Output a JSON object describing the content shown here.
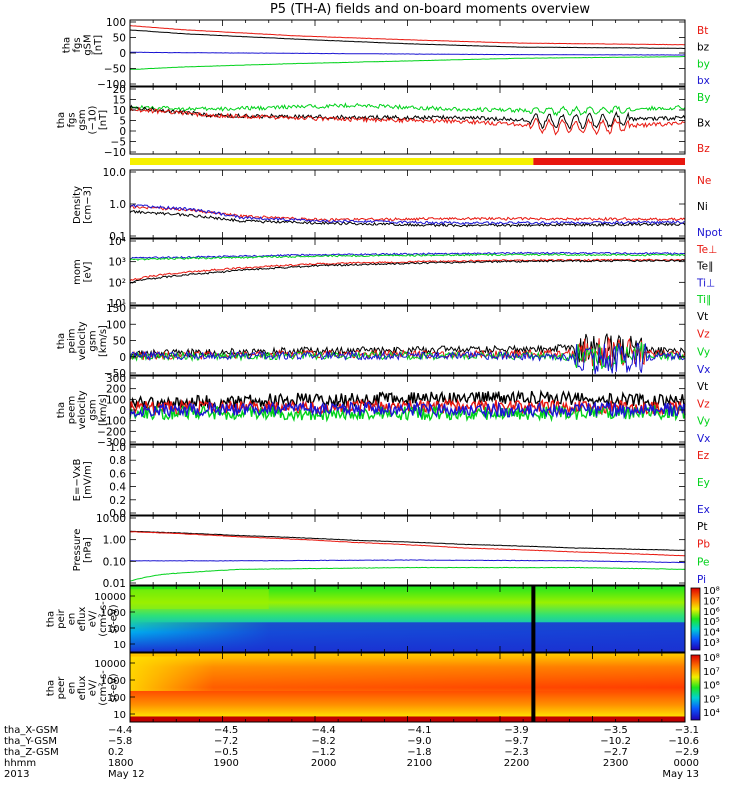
{
  "title": "P5 (TH-A) fields and on-board moments overview",
  "colors": {
    "black": "#000000",
    "red": "#e8170f",
    "green": "#00d21a",
    "blue": "#1a14d2",
    "yellow": "#f6f000"
  },
  "chart_data": [
    {
      "id": "fgs_gsm",
      "type": "line",
      "ylabel": [
        "tha",
        "fgs",
        "gSM",
        "[nT]"
      ],
      "yticks": [
        "100",
        "50",
        "0",
        "−50",
        "−100"
      ],
      "ylim": [
        -100,
        100
      ],
      "series": [
        {
          "name": "Bt",
          "color": "red",
          "values_x": [
            0,
            0.1,
            0.3,
            0.5,
            0.7,
            1.0
          ],
          "values": [
            83,
            70,
            52,
            40,
            30,
            25
          ]
        },
        {
          "name": "bz",
          "color": "black",
          "values_x": [
            0,
            0.1,
            0.3,
            0.5,
            0.7,
            1.0
          ],
          "values": [
            70,
            58,
            42,
            28,
            18,
            14
          ]
        },
        {
          "name": "by",
          "color": "green",
          "values_x": [
            0,
            0.1,
            0.3,
            0.5,
            0.7,
            1.0
          ],
          "values": [
            -50,
            -42,
            -32,
            -24,
            -16,
            -11
          ]
        },
        {
          "name": "bx",
          "color": "blue",
          "values_x": [
            0,
            0.1,
            0.3,
            0.5,
            0.7,
            1.0
          ],
          "values": [
            2,
            1,
            -1,
            -3,
            -5,
            -6
          ]
        }
      ]
    },
    {
      "id": "fgs_gsm_detail",
      "type": "line",
      "ylabel": [
        "tha",
        "fgs",
        "gsm",
        "(−10)",
        "[nT]"
      ],
      "yticks": [
        "20",
        "15",
        "10",
        "5",
        "0",
        "−5",
        "−10"
      ],
      "ylim": [
        -13,
        20
      ],
      "series": [
        {
          "name": "By",
          "color": "green",
          "values_x": [
            0,
            0.15,
            0.4,
            0.6,
            0.8,
            1.0
          ],
          "values": [
            10,
            9,
            11,
            9,
            8,
            10
          ]
        },
        {
          "name": "Bx",
          "color": "black",
          "values_x": [
            0,
            0.15,
            0.4,
            0.6,
            0.8,
            1.0
          ],
          "values": [
            10,
            6,
            5,
            5,
            3,
            5
          ]
        },
        {
          "name": "Bz",
          "color": "red",
          "values_x": [
            0,
            0.15,
            0.4,
            0.6,
            0.8,
            1.0
          ],
          "values": [
            9,
            6,
            4,
            3,
            0,
            2
          ]
        }
      ]
    },
    {
      "id": "density",
      "type": "line",
      "ylabel": [
        "Density",
        "[cm−3]"
      ],
      "scale": "log",
      "yticks": [
        "10.0",
        "1.0",
        "0.1"
      ],
      "ylim": [
        0.1,
        15
      ],
      "series": [
        {
          "name": "Ne",
          "color": "red",
          "values_x": [
            0,
            0.1,
            0.2,
            0.35,
            0.6,
            1.0
          ],
          "values": [
            1.0,
            0.8,
            0.5,
            0.38,
            0.42,
            0.4
          ]
        },
        {
          "name": "Ni",
          "color": "black",
          "values_x": [
            0,
            0.1,
            0.2,
            0.35,
            0.6,
            1.0
          ],
          "values": [
            0.7,
            0.55,
            0.35,
            0.3,
            0.25,
            0.28
          ]
        },
        {
          "name": "Npot",
          "color": "blue",
          "values_x": [
            0,
            0.1,
            0.2,
            0.35,
            0.6,
            1.0
          ],
          "values": [
            1.1,
            0.85,
            0.45,
            0.35,
            0.3,
            0.32
          ]
        }
      ]
    },
    {
      "id": "temperature",
      "type": "line",
      "ylabel": [
        "mom",
        "[eV]"
      ],
      "scale": "log",
      "yticks": [
        "10⁴",
        "10³",
        "10²",
        "10¹"
      ],
      "ylim": [
        10,
        30000
      ],
      "series": [
        {
          "name": "Te⊥",
          "color": "red",
          "values_x": [
            0,
            0.15,
            0.35,
            0.55,
            0.7,
            1.0
          ],
          "values": [
            200,
            700,
            1500,
            2000,
            2300,
            2400
          ]
        },
        {
          "name": "Te∥",
          "color": "black",
          "values_x": [
            0,
            0.15,
            0.35,
            0.55,
            0.7,
            1.0
          ],
          "values": [
            150,
            500,
            1200,
            1700,
            2000,
            2200
          ]
        },
        {
          "name": "Ti⊥",
          "color": "blue",
          "values_x": [
            0,
            0.15,
            0.35,
            0.55,
            0.7,
            1.0
          ],
          "values": [
            3000,
            3500,
            4500,
            5000,
            5500,
            5200
          ]
        },
        {
          "name": "Ti∥",
          "color": "green",
          "values_x": [
            0,
            0.15,
            0.35,
            0.55,
            0.7,
            1.0
          ],
          "values": [
            2500,
            3000,
            3800,
            4200,
            4500,
            4300
          ]
        }
      ]
    },
    {
      "id": "peim_velocity",
      "type": "line",
      "ylabel": [
        "tha",
        "peim",
        "velocity",
        "gsm",
        "[km/s]"
      ],
      "yticks": [
        "150",
        "100",
        "50",
        "0",
        "−50"
      ],
      "ylim": [
        -60,
        155
      ],
      "series": [
        {
          "name": "Vt",
          "color": "black",
          "values_x": [
            0,
            0.3,
            0.7,
            0.85,
            1.0
          ],
          "values": [
            5,
            15,
            20,
            25,
            12
          ]
        },
        {
          "name": "Vz",
          "color": "red",
          "values_x": [
            0,
            0.3,
            0.7,
            0.85,
            1.0
          ],
          "values": [
            0,
            5,
            5,
            10,
            3
          ]
        },
        {
          "name": "Vy",
          "color": "green",
          "values_x": [
            0,
            0.3,
            0.7,
            0.85,
            1.0
          ],
          "values": [
            -3,
            0,
            0,
            -5,
            0
          ]
        },
        {
          "name": "Vx",
          "color": "blue",
          "values_x": [
            0,
            0.3,
            0.7,
            0.85,
            1.0
          ],
          "values": [
            0,
            0,
            0,
            -10,
            0
          ]
        }
      ]
    },
    {
      "id": "peem_velocity",
      "type": "line",
      "ylabel": [
        "tha",
        "peem",
        "velocity",
        "gsm",
        "[km/s]"
      ],
      "yticks": [
        "300",
        "200",
        "100",
        "0",
        "−100",
        "−200",
        "−300"
      ],
      "ylim": [
        -300,
        300
      ],
      "series": [
        {
          "name": "Vt",
          "color": "black",
          "values_x": [
            0,
            0.3,
            0.7,
            1.0
          ],
          "values": [
            60,
            90,
            110,
            80
          ]
        },
        {
          "name": "Vz",
          "color": "red",
          "values_x": [
            0,
            0.3,
            0.7,
            1.0
          ],
          "values": [
            20,
            25,
            30,
            20
          ]
        },
        {
          "name": "Vy",
          "color": "green",
          "values_x": [
            0,
            0.3,
            0.7,
            1.0
          ],
          "values": [
            -20,
            -30,
            -30,
            -20
          ]
        },
        {
          "name": "Vx",
          "color": "blue",
          "values_x": [
            0,
            0.3,
            0.7,
            1.0
          ],
          "values": [
            0,
            10,
            0,
            5
          ]
        }
      ]
    },
    {
      "id": "efield",
      "type": "line",
      "ylabel": [
        "E=−VxB",
        "[mV/m]"
      ],
      "yticks": [
        "1.0",
        "0.8",
        "0.6",
        "0.4",
        "0.2",
        "0.0"
      ],
      "ylim": [
        0,
        1
      ],
      "series": [
        {
          "name": "Ez",
          "color": "red"
        },
        {
          "name": "Ey",
          "color": "green"
        },
        {
          "name": "Ex",
          "color": "blue"
        }
      ]
    },
    {
      "id": "pressure",
      "type": "line",
      "ylabel": [
        "Pressure",
        "[nPa]"
      ],
      "scale": "log",
      "yticks": [
        "10.00",
        "1.00",
        "0.10",
        "0.01"
      ],
      "ylim": [
        0.01,
        12
      ],
      "series": [
        {
          "name": "Pt",
          "color": "black",
          "values_x": [
            0,
            0.2,
            0.4,
            0.6,
            0.8,
            1.0
          ],
          "values": [
            2.5,
            1.6,
            1.0,
            0.65,
            0.45,
            0.35
          ]
        },
        {
          "name": "Pb",
          "color": "red",
          "values_x": [
            0,
            0.2,
            0.4,
            0.6,
            0.8,
            1.0
          ],
          "values": [
            2.4,
            1.4,
            0.8,
            0.45,
            0.3,
            0.2
          ]
        },
        {
          "name": "Pe",
          "color": "green",
          "values_x": [
            0,
            0.06,
            0.2,
            0.5,
            0.8,
            1.0
          ],
          "values": [
            0.015,
            0.03,
            0.05,
            0.06,
            0.06,
            0.05
          ]
        },
        {
          "name": "Pi",
          "color": "blue",
          "values_x": [
            0,
            0.2,
            0.5,
            0.8,
            1.0
          ],
          "values": [
            0.12,
            0.12,
            0.13,
            0.12,
            0.1
          ]
        }
      ]
    },
    {
      "id": "peir_spec",
      "type": "heatmap",
      "ylabel": [
        "tha",
        "peir",
        "en",
        "eflux",
        "eV/",
        "(cm²-s-",
        "sr-eV)"
      ],
      "yticks": [
        "10000",
        "1000",
        "100",
        "10"
      ],
      "cbar_ticks": [
        "10⁸",
        "10⁷",
        "10⁶",
        "10⁵",
        "10⁴",
        "10³"
      ]
    },
    {
      "id": "peer_spec",
      "type": "heatmap",
      "ylabel": [
        "tha",
        "peer",
        "en",
        "eflux",
        "eV/",
        "(cm²-s-",
        "sr-eV)"
      ],
      "yticks": [
        "10000",
        "1000",
        "100",
        "10"
      ],
      "cbar_ticks": [
        "10⁸",
        "10⁷",
        "10⁶",
        "10⁵",
        "10⁴"
      ]
    }
  ],
  "xaxis": {
    "row_labels": [
      "tha_X-GSM",
      "tha_Y-GSM",
      "tha_Z-GSM",
      "hhmm",
      "2013"
    ],
    "columns": [
      {
        "x": 0,
        "vals": [
          "−4.4",
          "−5.8",
          "0.2",
          "1800",
          "May 12"
        ]
      },
      {
        "x": 0.1732,
        "vals": [
          "−4.5",
          "−7.2",
          "−0.5",
          "1900",
          ""
        ]
      },
      {
        "x": 0.3489,
        "vals": [
          "−4.4",
          "−8.2",
          "−1.2",
          "2000",
          ""
        ]
      },
      {
        "x": 0.5214,
        "vals": [
          "−4.1",
          "−9.0",
          "−1.8",
          "2100",
          ""
        ]
      },
      {
        "x": 0.6964,
        "vals": [
          "−3.9",
          "−9.7",
          "−2.3",
          "2200",
          ""
        ]
      },
      {
        "x": 0.875,
        "vals": [
          "−3.5",
          "−10.2",
          "−2.7",
          "2300",
          ""
        ]
      },
      {
        "x": 1.0,
        "vals": [
          "−3.1",
          "−10.6",
          "−2.9",
          "0000",
          "May 13"
        ]
      }
    ]
  },
  "mode_bar": {
    "switch_x": 0.7268
  }
}
